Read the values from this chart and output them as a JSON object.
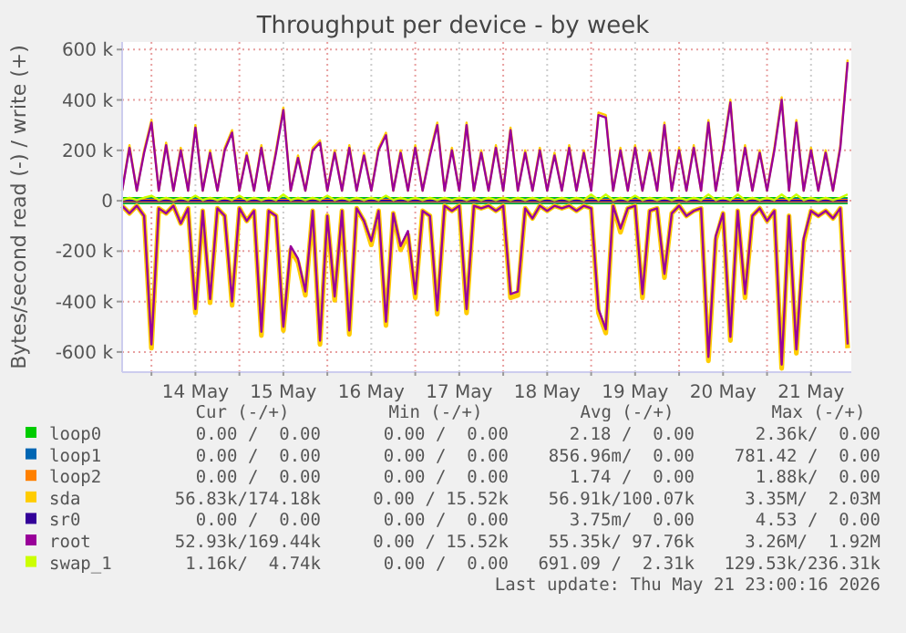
{
  "chart_data": {
    "type": "line",
    "title": "Throughput per device - by week",
    "ylabel": "Bytes/second read (-) / write (+)",
    "x": [
      "2026-05-13T16:00",
      "2026-05-13T18:00",
      "2026-05-13T20:00",
      "2026-05-13T22:00",
      "2026-05-14T00:00",
      "2026-05-14T02:00",
      "2026-05-14T04:00",
      "2026-05-14T06:00",
      "2026-05-14T08:00",
      "2026-05-14T10:00",
      "2026-05-14T12:00",
      "2026-05-14T14:00",
      "2026-05-14T16:00",
      "2026-05-14T18:00",
      "2026-05-14T20:00",
      "2026-05-14T22:00",
      "2026-05-15T00:00",
      "2026-05-15T02:00",
      "2026-05-15T04:00",
      "2026-05-15T06:00",
      "2026-05-15T08:00",
      "2026-05-15T10:00",
      "2026-05-15T12:00",
      "2026-05-15T14:00",
      "2026-05-15T16:00",
      "2026-05-15T18:00",
      "2026-05-15T20:00",
      "2026-05-15T22:00",
      "2026-05-16T00:00",
      "2026-05-16T02:00",
      "2026-05-16T04:00",
      "2026-05-16T06:00",
      "2026-05-16T08:00",
      "2026-05-16T10:00",
      "2026-05-16T12:00",
      "2026-05-16T14:00",
      "2026-05-16T16:00",
      "2026-05-16T18:00",
      "2026-05-16T20:00",
      "2026-05-16T22:00",
      "2026-05-17T00:00",
      "2026-05-17T02:00",
      "2026-05-17T04:00",
      "2026-05-17T06:00",
      "2026-05-17T08:00",
      "2026-05-17T10:00",
      "2026-05-17T12:00",
      "2026-05-17T14:00",
      "2026-05-17T16:00",
      "2026-05-17T18:00",
      "2026-05-17T20:00",
      "2026-05-17T22:00",
      "2026-05-18T00:00",
      "2026-05-18T02:00",
      "2026-05-18T04:00",
      "2026-05-18T06:00",
      "2026-05-18T08:00",
      "2026-05-18T10:00",
      "2026-05-18T12:00",
      "2026-05-18T14:00",
      "2026-05-18T16:00",
      "2026-05-18T18:00",
      "2026-05-18T20:00",
      "2026-05-18T22:00",
      "2026-05-19T00:00",
      "2026-05-19T02:00",
      "2026-05-19T04:00",
      "2026-05-19T06:00",
      "2026-05-19T08:00",
      "2026-05-19T10:00",
      "2026-05-19T12:00",
      "2026-05-19T14:00",
      "2026-05-19T16:00",
      "2026-05-19T18:00",
      "2026-05-19T20:00",
      "2026-05-19T22:00",
      "2026-05-20T00:00",
      "2026-05-20T02:00",
      "2026-05-20T04:00",
      "2026-05-20T06:00",
      "2026-05-20T08:00",
      "2026-05-20T10:00",
      "2026-05-20T12:00",
      "2026-05-20T14:00",
      "2026-05-20T16:00",
      "2026-05-20T18:00",
      "2026-05-20T20:00",
      "2026-05-20T22:00",
      "2026-05-21T00:00",
      "2026-05-21T02:00",
      "2026-05-21T04:00",
      "2026-05-21T06:00",
      "2026-05-21T08:00",
      "2026-05-21T10:00",
      "2026-05-21T12:00",
      "2026-05-21T14:00",
      "2026-05-21T16:00",
      "2026-05-21T18:00",
      "2026-05-21T20:00",
      "2026-05-21T22:00"
    ],
    "xlim": [
      "2026-05-13T16:00",
      "2026-05-21T23:00"
    ],
    "xticks": [
      {
        "value": "2026-05-14T00:00",
        "label": null
      },
      {
        "value": "2026-05-14T12:00",
        "label": "14 May"
      },
      {
        "value": "2026-05-15T00:00",
        "label": null
      },
      {
        "value": "2026-05-15T12:00",
        "label": "15 May"
      },
      {
        "value": "2026-05-16T00:00",
        "label": null
      },
      {
        "value": "2026-05-16T12:00",
        "label": "16 May"
      },
      {
        "value": "2026-05-17T00:00",
        "label": null
      },
      {
        "value": "2026-05-17T12:00",
        "label": "17 May"
      },
      {
        "value": "2026-05-18T00:00",
        "label": null
      },
      {
        "value": "2026-05-18T12:00",
        "label": "18 May"
      },
      {
        "value": "2026-05-19T00:00",
        "label": null
      },
      {
        "value": "2026-05-19T12:00",
        "label": "19 May"
      },
      {
        "value": "2026-05-20T00:00",
        "label": null
      },
      {
        "value": "2026-05-20T12:00",
        "label": "20 May"
      },
      {
        "value": "2026-05-21T00:00",
        "label": null
      },
      {
        "value": "2026-05-21T12:00",
        "label": "21 May"
      }
    ],
    "ylim": [
      -680000,
      630000
    ],
    "yticks": [
      {
        "value": -600000,
        "label": "-600 k"
      },
      {
        "value": -400000,
        "label": "-400 k"
      },
      {
        "value": -200000,
        "label": "-200 k"
      },
      0,
      {
        "value": 200000,
        "label": "200 k"
      },
      {
        "value": 400000,
        "label": "400 k"
      },
      {
        "value": 600000,
        "label": "600 k"
      }
    ],
    "grid": true,
    "legend": "bottom",
    "series": [
      {
        "name": "loop0",
        "color": "#00cc00",
        "x": [
          "2026-05-13T16:00",
          "2026-05-21T22:00"
        ],
        "values": [
          0,
          0
        ]
      },
      {
        "name": "loop1",
        "color": "#0066b3",
        "x": [
          "2026-05-13T16:00",
          "2026-05-21T22:00"
        ],
        "values": [
          0,
          0
        ]
      },
      {
        "name": "loop2",
        "color": "#ff8000",
        "x": [
          "2026-05-13T16:00",
          "2026-05-21T22:00"
        ],
        "values": [
          0,
          0
        ]
      },
      {
        "name": "sda",
        "color": "#ffcc00",
        "values": [
          40000,
          220000,
          40000,
          200000,
          320000,
          40000,
          230000,
          40000,
          210000,
          40000,
          300000,
          40000,
          200000,
          40000,
          210000,
          280000,
          40000,
          190000,
          40000,
          220000,
          40000,
          200000,
          370000,
          40000,
          180000,
          40000,
          210000,
          240000,
          40000,
          200000,
          40000,
          220000,
          40000,
          190000,
          40000,
          210000,
          270000,
          40000,
          200000,
          40000,
          220000,
          40000,
          190000,
          310000,
          40000,
          210000,
          40000,
          310000,
          40000,
          200000,
          40000,
          220000,
          40000,
          290000,
          40000,
          200000,
          40000,
          210000,
          40000,
          190000,
          40000,
          220000,
          40000,
          200000,
          40000,
          350000,
          340000,
          40000,
          210000,
          40000,
          220000,
          40000,
          200000,
          40000,
          310000,
          40000,
          210000,
          40000,
          220000,
          40000,
          320000,
          40000,
          210000,
          400000,
          40000,
          220000,
          40000,
          200000,
          40000,
          210000,
          410000,
          40000,
          320000,
          40000,
          210000,
          40000,
          200000,
          40000,
          220000,
          560000
        ]
      },
      {
        "color": "#ffcc00",
        "values": [
          -20000,
          -50000,
          -20000,
          -60000,
          -585000,
          -30000,
          -50000,
          -20000,
          -90000,
          -30000,
          -445000,
          -40000,
          -405000,
          -30000,
          -60000,
          -415000,
          -30000,
          -80000,
          -40000,
          -535000,
          -40000,
          -60000,
          -515000,
          -195000,
          -245000,
          -375000,
          -40000,
          -570000,
          -60000,
          -395000,
          -40000,
          -530000,
          -30000,
          -80000,
          -175000,
          -40000,
          -495000,
          -50000,
          -195000,
          -135000,
          -385000,
          -40000,
          -60000,
          -450000,
          -20000,
          -40000,
          -20000,
          -445000,
          -20000,
          -30000,
          -20000,
          -40000,
          -20000,
          -385000,
          -375000,
          -30000,
          -70000,
          -20000,
          -40000,
          -20000,
          -30000,
          -20000,
          -40000,
          -20000,
          -30000,
          -445000,
          -525000,
          -20000,
          -125000,
          -30000,
          -20000,
          -385000,
          -40000,
          -30000,
          -305000,
          -50000,
          -20000,
          -60000,
          -40000,
          -30000,
          -635000,
          -155000,
          -50000,
          -555000,
          -40000,
          -385000,
          -60000,
          -30000,
          -80000,
          -40000,
          -665000,
          -60000,
          -605000,
          -165000,
          -40000,
          -60000,
          -40000,
          -70000,
          -30000,
          -585000
        ]
      },
      {
        "name": "sr0",
        "color": "#330099",
        "x": [
          "2026-05-13T16:00",
          "2026-05-21T22:00"
        ],
        "values": [
          0,
          0
        ]
      },
      {
        "name": "root",
        "color": "#990099",
        "values": [
          40000,
          210000,
          40000,
          190000,
          310000,
          40000,
          220000,
          40000,
          200000,
          40000,
          290000,
          40000,
          190000,
          40000,
          200000,
          270000,
          40000,
          180000,
          40000,
          210000,
          40000,
          190000,
          360000,
          40000,
          170000,
          40000,
          200000,
          230000,
          40000,
          190000,
          40000,
          210000,
          40000,
          180000,
          40000,
          200000,
          260000,
          40000,
          190000,
          40000,
          210000,
          40000,
          180000,
          300000,
          40000,
          200000,
          40000,
          300000,
          40000,
          190000,
          40000,
          210000,
          40000,
          280000,
          40000,
          190000,
          40000,
          200000,
          40000,
          180000,
          40000,
          210000,
          40000,
          190000,
          40000,
          340000,
          330000,
          40000,
          200000,
          40000,
          210000,
          40000,
          190000,
          40000,
          300000,
          40000,
          200000,
          40000,
          210000,
          40000,
          310000,
          40000,
          200000,
          390000,
          40000,
          210000,
          40000,
          190000,
          40000,
          200000,
          400000,
          40000,
          310000,
          40000,
          200000,
          40000,
          190000,
          40000,
          210000,
          550000
        ]
      },
      {
        "color": "#990099",
        "values": [
          -20000,
          -50000,
          -20000,
          -60000,
          -570000,
          -30000,
          -50000,
          -20000,
          -90000,
          -30000,
          -430000,
          -40000,
          -390000,
          -30000,
          -60000,
          -400000,
          -30000,
          -80000,
          -40000,
          -520000,
          -40000,
          -60000,
          -500000,
          -180000,
          -230000,
          -360000,
          -40000,
          -555000,
          -60000,
          -380000,
          -40000,
          -515000,
          -30000,
          -80000,
          -160000,
          -40000,
          -480000,
          -50000,
          -180000,
          -120000,
          -370000,
          -40000,
          -60000,
          -435000,
          -20000,
          -40000,
          -20000,
          -430000,
          -20000,
          -30000,
          -20000,
          -40000,
          -20000,
          -370000,
          -360000,
          -30000,
          -70000,
          -20000,
          -40000,
          -20000,
          -30000,
          -20000,
          -40000,
          -20000,
          -30000,
          -430000,
          -510000,
          -20000,
          -110000,
          -30000,
          -20000,
          -370000,
          -40000,
          -30000,
          -290000,
          -50000,
          -20000,
          -60000,
          -40000,
          -30000,
          -620000,
          -140000,
          -50000,
          -540000,
          -40000,
          -370000,
          -60000,
          -30000,
          -80000,
          -40000,
          -650000,
          -60000,
          -590000,
          -150000,
          -40000,
          -60000,
          -40000,
          -70000,
          -30000,
          -570000
        ]
      },
      {
        "name": "swap_1",
        "color": "#ccff00",
        "values": [
          3000,
          12000,
          3000,
          12000,
          20000,
          3000,
          12000,
          3000,
          12000,
          3000,
          20000,
          3000,
          12000,
          3000,
          12000,
          3000,
          20000,
          3000,
          12000,
          3000,
          12000,
          3000,
          25000,
          3000,
          12000,
          3000,
          12000,
          3000,
          20000,
          3000,
          12000,
          3000,
          12000,
          3000,
          12000,
          3000,
          20000,
          3000,
          12000,
          3000,
          12000,
          3000,
          12000,
          3000,
          12000,
          3000,
          12000,
          3000,
          12000,
          3000,
          12000,
          3000,
          12000,
          3000,
          12000,
          3000,
          12000,
          3000,
          12000,
          3000,
          12000,
          3000,
          12000,
          3000,
          25000,
          3000,
          25000,
          3000,
          12000,
          3000,
          20000,
          3000,
          12000,
          3000,
          12000,
          3000,
          12000,
          3000,
          12000,
          3000,
          25000,
          3000,
          12000,
          3000,
          25000,
          3000,
          12000,
          3000,
          12000,
          3000,
          25000,
          3000,
          25000,
          3000,
          12000,
          3000,
          12000,
          3000,
          12000,
          25000
        ]
      }
    ],
    "annotations": [
      "Cur (-/+)",
      "Min (-/+)",
      "Avg (-/+)",
      "Max (-/+)",
      "0.00 /  0.00",
      "0.00 /  0.00",
      "2.18 /  0.00",
      "2.36k/  0.00",
      "0.00 /  0.00",
      "0.00 /  0.00",
      "856.96m/  0.00",
      "781.42 /  0.00",
      "0.00 /  0.00",
      "0.00 /  0.00",
      "1.74 /  0.00",
      "1.88k/  0.00",
      "56.83k/174.18k",
      "0.00 / 15.52k",
      "56.91k/100.07k",
      "3.35M/  2.03M",
      "0.00 /  0.00",
      "0.00 /  0.00",
      "3.75m/  0.00",
      "4.53 /  0.00",
      "52.93k/169.44k",
      "0.00 / 15.52k",
      "55.35k/ 97.76k",
      "3.26M/  1.92M",
      "1.16k/  4.74k",
      "0.00 /  0.00",
      "691.09 /  2.31k",
      "129.53k/236.31k",
      "Last update: Thu May 21 23:00:16 2026"
    ]
  }
}
